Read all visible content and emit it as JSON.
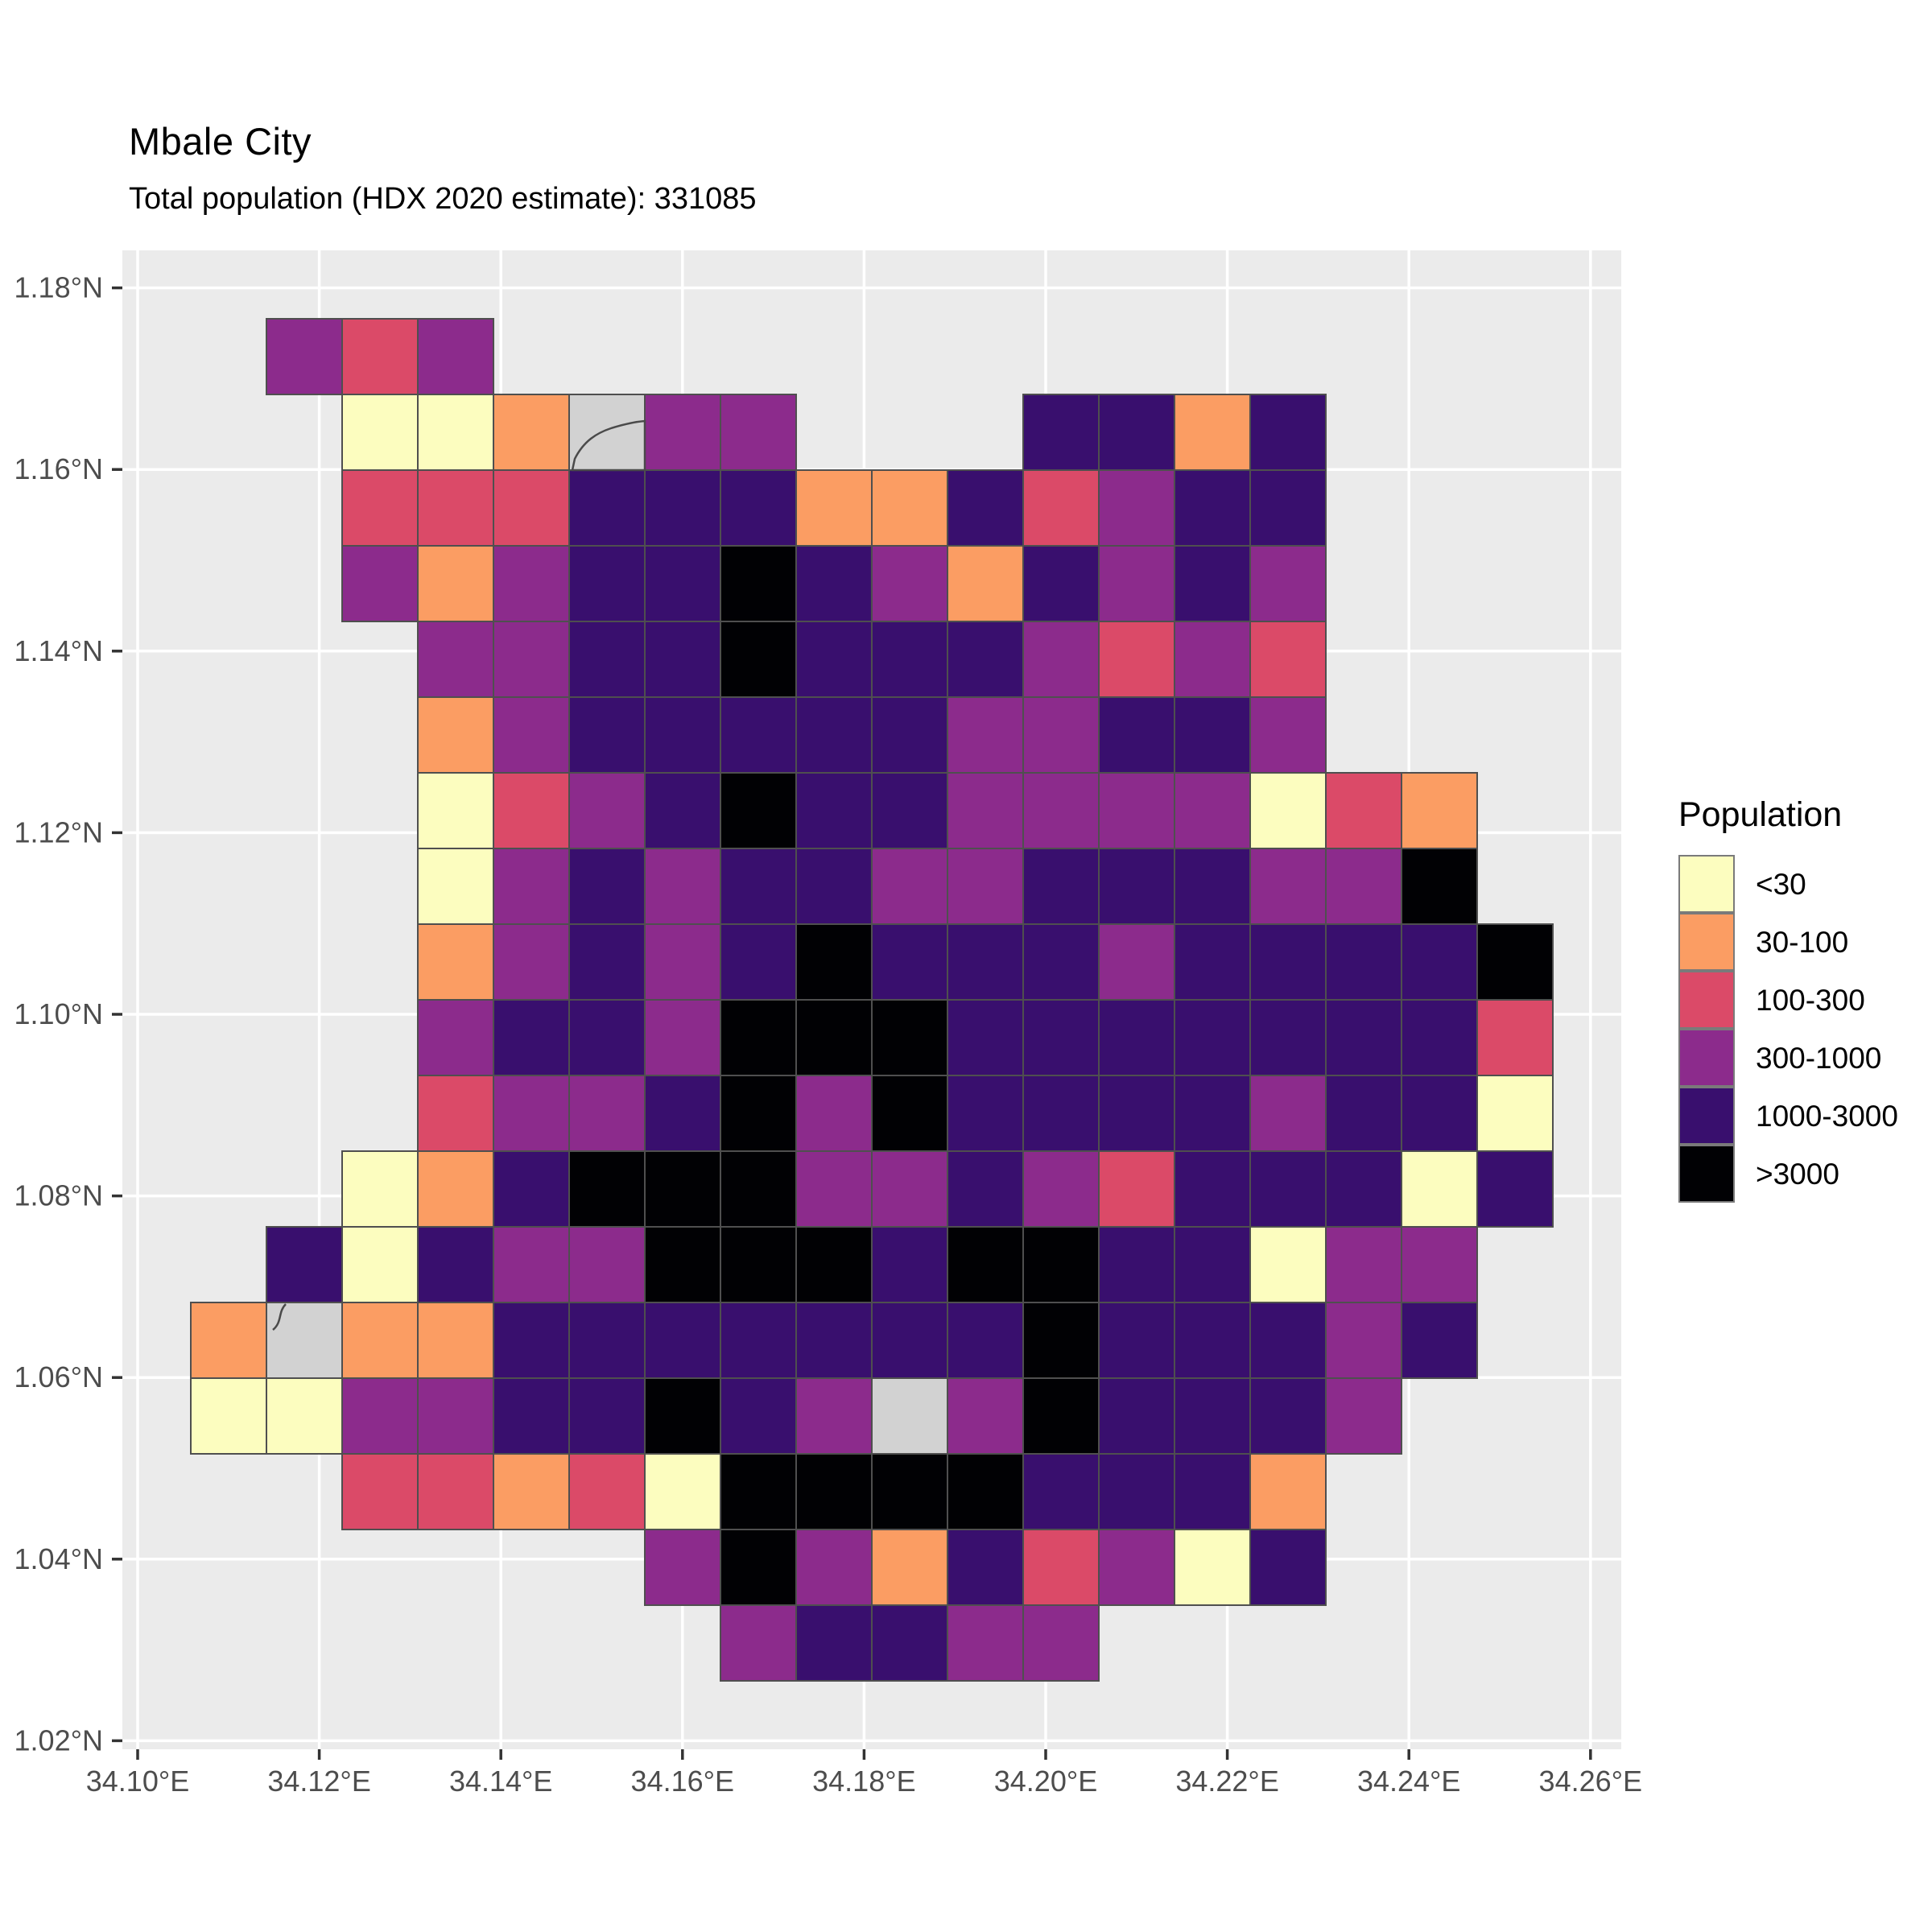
{
  "chart_data": {
    "type": "heatmap",
    "title": "Mbale City",
    "subtitle": "Total population (HDX 2020 estimate): 331085",
    "legend": {
      "title": "Population",
      "categories": [
        {
          "code": "1",
          "label": "<30",
          "color": "#FCFDBF"
        },
        {
          "code": "2",
          "label": "30-100",
          "color": "#FB9D63"
        },
        {
          "code": "3",
          "label": "100-300",
          "color": "#DB4A68"
        },
        {
          "code": "4",
          "label": "300-1000",
          "color": "#8C2B8C"
        },
        {
          "code": "5",
          "label": "1000-3000",
          "color": "#390F6E"
        },
        {
          "code": "6",
          "label": ">3000",
          "color": "#010104"
        }
      ],
      "na_color": "#D2D2D2",
      "position": "right"
    },
    "x_axis": {
      "ticks": [
        "34.10°E",
        "34.12°E",
        "34.14°E",
        "34.16°E",
        "34.18°E",
        "34.20°E",
        "34.22°E",
        "34.24°E",
        "34.26°E"
      ],
      "tick_values": [
        34.1,
        34.12,
        34.14,
        34.16,
        34.18,
        34.2,
        34.22,
        34.24,
        34.26
      ],
      "range": [
        34.1,
        34.26
      ]
    },
    "y_axis": {
      "ticks": [
        "1.02°N",
        "1.04°N",
        "1.06°N",
        "1.08°N",
        "1.10°N",
        "1.12°N",
        "1.14°N",
        "1.16°N",
        "1.18°N"
      ],
      "tick_values": [
        1.02,
        1.04,
        1.06,
        1.08,
        1.1,
        1.12,
        1.14,
        1.16,
        1.18
      ],
      "range": [
        1.02,
        1.18
      ]
    },
    "grid_on": true,
    "panel_background": "#EBEBEB",
    "gridline_color": "#FFFFFF",
    "cell_border_color": "#4F4F4F",
    "axis_text_color": "#4D4D4D",
    "tick_mark_color": "#333333",
    "grid": {
      "comment_codes": "per-cell population bin: 1=<30, 2=30-100, 3=100-300, 4=300-1000, 5=1000-3000, 6=>3000, N=no-data(gray), .=outside city",
      "origin_lon": 34.1058,
      "origin_lat_top": 1.1766,
      "cell_deg": 0.008333,
      "ncols": 18,
      "nrows": 18,
      "rows": [
        ".434..............",
        "..112N44...5525...",
        "..3335552253455...",
        "..4245565425454...",
        "...445565554343...",
        "...245555544554...",
        "...13456554444132.",
        "...14545544555446.",
        "...245456555455556",
        "...455466655555553",
        "...344564655554551",
        "..1256664454355515",
        ".5154466656655144.",
        "2N225555555655545.",
        "114455654N465554..",
        "..3323166665552...",
        "......464253415...",
        ".......45544......"
      ],
      "na_cells": [
        {
          "row": 13,
          "col": 1,
          "note": "gray no-data cell with stream line"
        },
        {
          "row": 14,
          "col": 9,
          "note": "gray no-data cell"
        }
      ],
      "coast_blob": {
        "row": 1,
        "col": 5,
        "note": "gray area clipped by coastline at top of map"
      }
    }
  }
}
